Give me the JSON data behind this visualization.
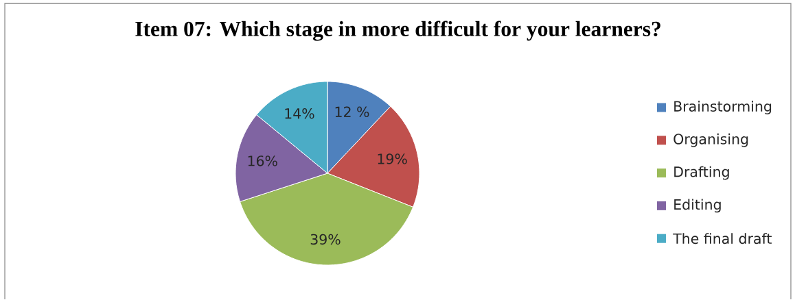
{
  "chart_data": {
    "type": "pie",
    "title": "Item 07: Which stage in more difficult for your learners?",
    "categories": [
      "Brainstorming",
      "Organising",
      "Drafting",
      "Editing",
      "The final draft"
    ],
    "values": [
      12,
      19,
      39,
      16,
      14
    ],
    "colors": [
      "#4f81bd",
      "#c0504d",
      "#9bbb59",
      "#8064a2",
      "#4bacc6"
    ],
    "value_labels": [
      "12 %",
      "19%",
      "39%",
      "16%",
      "14%"
    ],
    "legend": "right"
  }
}
